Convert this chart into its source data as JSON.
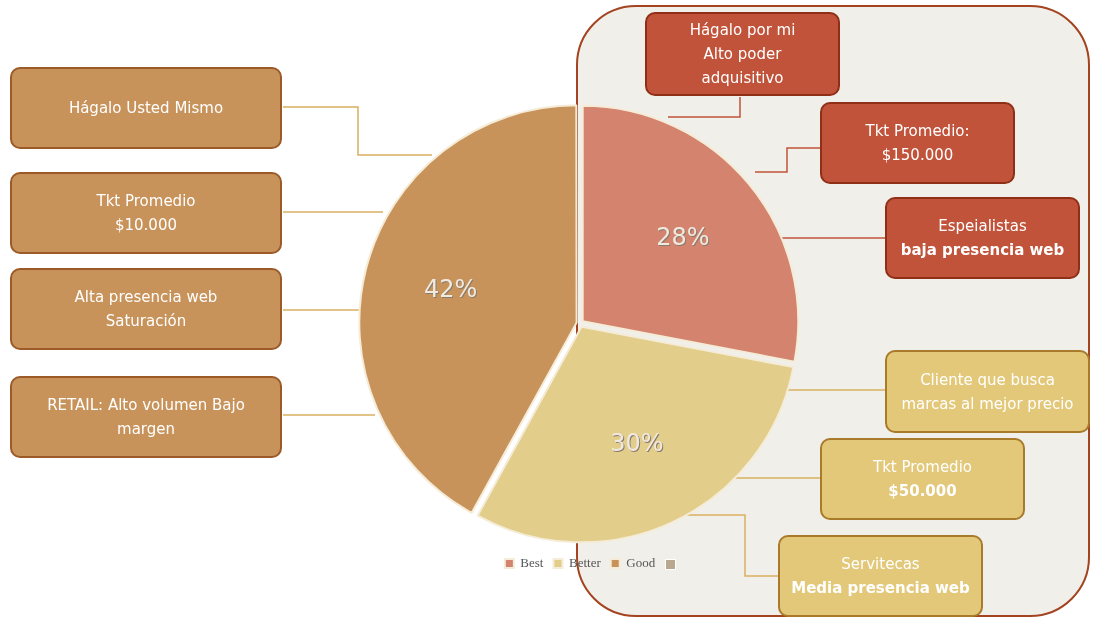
{
  "chart_data": {
    "type": "pie",
    "categories": [
      "Best",
      "Better",
      "Good"
    ],
    "values": [
      28,
      30,
      42
    ],
    "colors": [
      "#d4846e",
      "#e2cd8a",
      "#c8935a"
    ],
    "value_labels": [
      "28%",
      "30%",
      "42%"
    ],
    "legend": "bottom",
    "annotations": [
      "Hágalo Usted Mismo",
      "Tkt Promedio\n$10.000",
      "Alta presencia web\nSaturación",
      "RETAIL: Alto volumen Bajo margen",
      "Hágalo por mi\nAlto poder\nadquisitivo",
      "Tkt Promedio:\n$150.000",
      "Espeialistas\nbaja presencia web",
      "Cliente que busca marcas al mejor precio",
      "Tkt Promedio\n$50.000",
      "Servitecas\nMedia presencia web"
    ]
  }
}
